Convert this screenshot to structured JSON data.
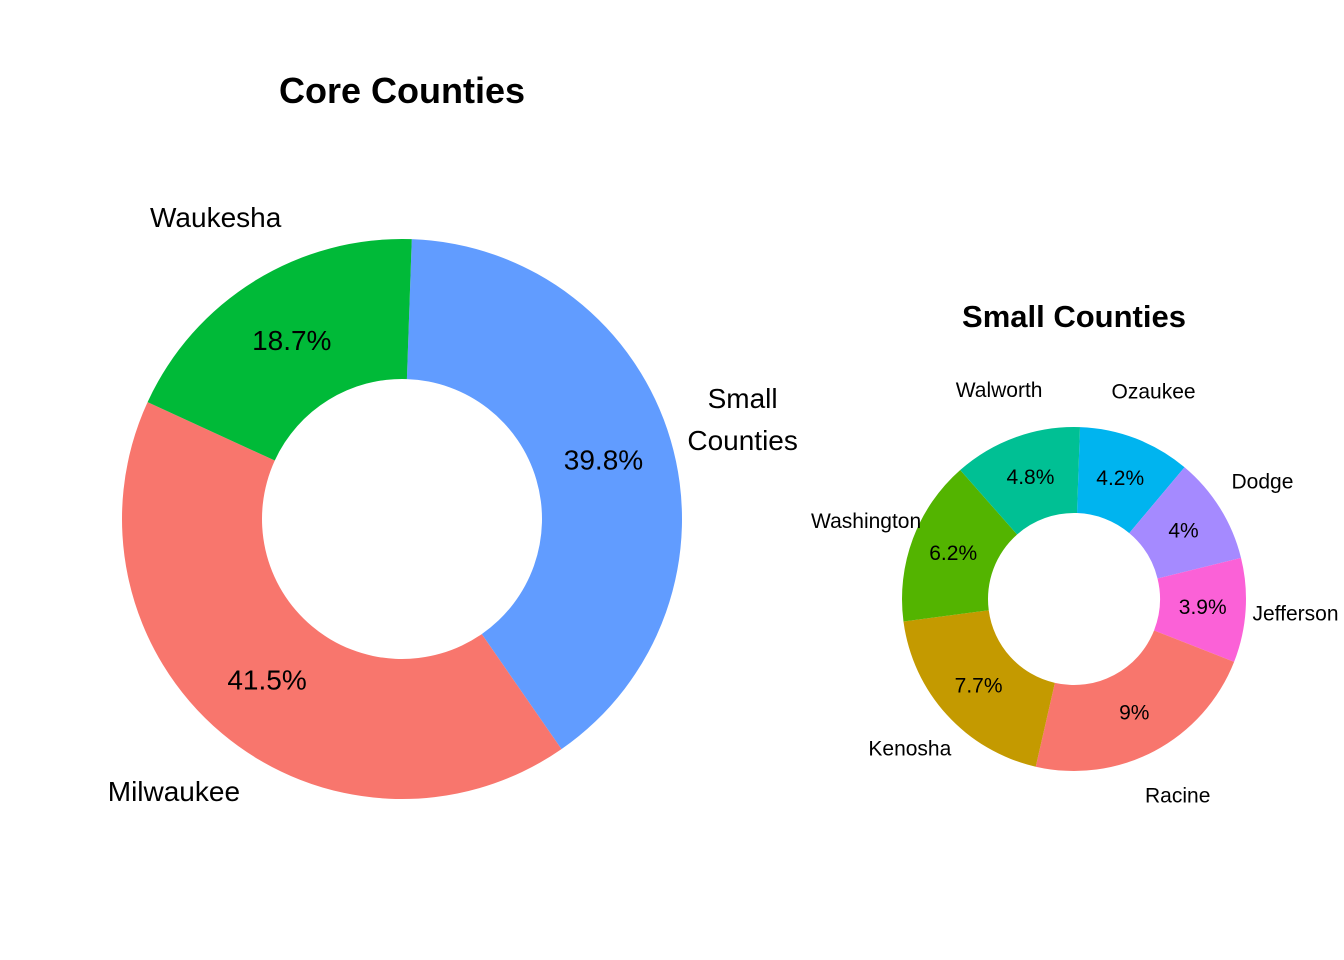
{
  "chart_data": [
    {
      "type": "pie",
      "title": "Core Counties",
      "slices": [
        {
          "name": "Small\nCounties",
          "value": 39.8,
          "label": "39.8%",
          "color": "#619CFF"
        },
        {
          "name": "Milwaukee",
          "value": 41.5,
          "label": "41.5%",
          "color": "#F8766D"
        },
        {
          "name": "Waukesha",
          "value": 18.7,
          "label": "18.7%",
          "color": "#00BA38"
        }
      ]
    },
    {
      "type": "pie",
      "title": "Small Counties",
      "slices": [
        {
          "name": "Ozaukee",
          "value": 4.2,
          "label": "4.2%",
          "color": "#00B4EF"
        },
        {
          "name": "Dodge",
          "value": 4.0,
          "label": "4%",
          "color": "#A58AFF"
        },
        {
          "name": "Jefferson",
          "value": 3.9,
          "label": "3.9%",
          "color": "#FB61D7"
        },
        {
          "name": "Racine",
          "value": 9.0,
          "label": "9%",
          "color": "#F8766D"
        },
        {
          "name": "Kenosha",
          "value": 7.7,
          "label": "7.7%",
          "color": "#C49A00"
        },
        {
          "name": "Washington",
          "value": 6.2,
          "label": "6.2%",
          "color": "#53B400"
        },
        {
          "name": "Walworth",
          "value": 4.8,
          "label": "4.8%",
          "color": "#00C094"
        }
      ]
    }
  ]
}
